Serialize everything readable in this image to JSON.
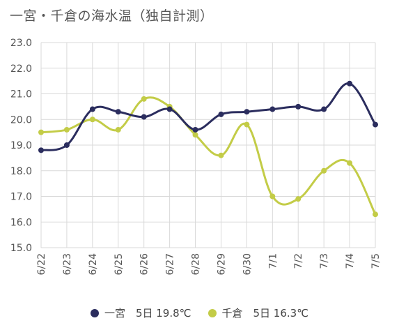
{
  "title": "一宮・千倉の海水温（独自計測）",
  "chart_data": {
    "type": "line",
    "categories": [
      "6/22",
      "6/23",
      "6/24",
      "6/25",
      "6/26",
      "6/27",
      "6/28",
      "6/29",
      "6/30",
      "7/1",
      "7/2",
      "7/3",
      "7/4",
      "7/5"
    ],
    "ylim": [
      15.0,
      23.0
    ],
    "yticks": [
      "15.0",
      "16.0",
      "17.0",
      "18.0",
      "19.0",
      "20.0",
      "21.0",
      "22.0",
      "23.0"
    ],
    "grid": true,
    "legend_position": "bottom",
    "series": [
      {
        "name": "一宮",
        "legend_label": "一宮　5日 19.8℃",
        "color": "#2b2d5e",
        "values": [
          18.8,
          19.0,
          20.4,
          20.3,
          20.1,
          20.4,
          19.6,
          20.2,
          20.3,
          20.4,
          20.5,
          20.4,
          21.4,
          19.8
        ]
      },
      {
        "name": "千倉",
        "legend_label": "千倉　5日 16.3℃",
        "color": "#c3cc47",
        "values": [
          19.5,
          19.6,
          20.0,
          19.6,
          20.8,
          20.5,
          19.4,
          18.6,
          19.8,
          17.0,
          16.9,
          18.0,
          18.3,
          16.3
        ]
      }
    ]
  }
}
